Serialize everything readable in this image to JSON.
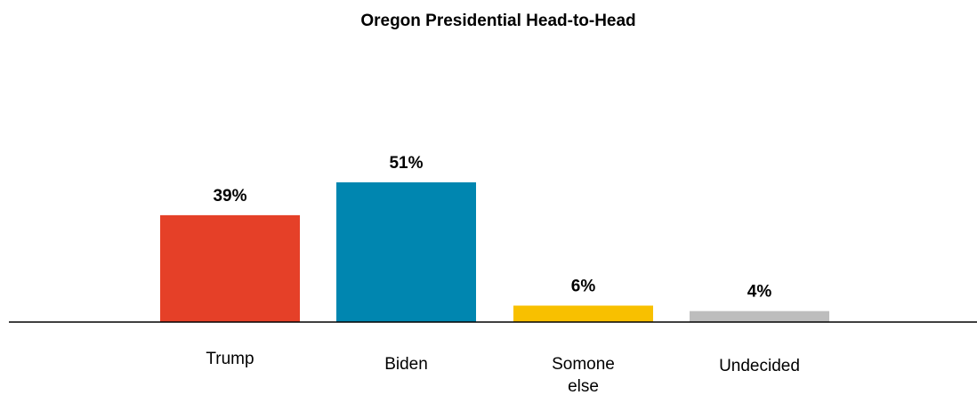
{
  "chart_data": {
    "type": "bar",
    "title": "Oregon Presidential Head-to-Head",
    "categories": [
      "Trump",
      "Biden",
      "Somone else",
      "Undecided"
    ],
    "values": [
      39,
      51,
      6,
      4
    ],
    "value_labels": [
      "39%",
      "51%",
      "6%",
      "4%"
    ],
    "colors": [
      "#e54028",
      "#0086b0",
      "#f8c000",
      "#bdbdbd"
    ],
    "xlabel": "",
    "ylabel": "",
    "ylim": [
      0,
      100
    ],
    "grid": false,
    "legend": "none"
  }
}
